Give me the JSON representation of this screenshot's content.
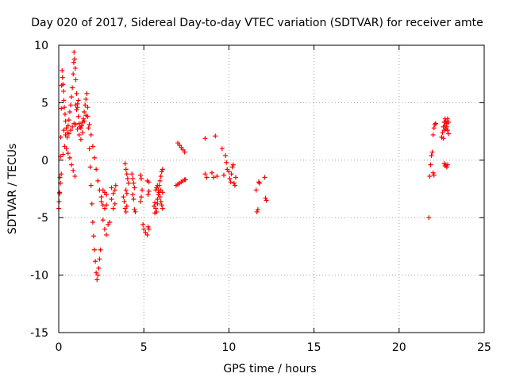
{
  "chart_data": {
    "type": "scatter",
    "title": "Day 020 of 2017, Sidereal Day-to-day VTEC variation (SDTVAR) for receiver amte",
    "xlabel": "GPS time / hours",
    "ylabel": "SDTVAR / TECUs",
    "xlim": [
      0,
      25
    ],
    "ylim": [
      -15,
      10
    ],
    "xticks": [
      0,
      5,
      10,
      15,
      20,
      25
    ],
    "xtick_labels": [
      "0",
      "5",
      "10",
      "15",
      "20",
      "25"
    ],
    "yticks": [
      -15,
      -10,
      -5,
      0,
      5,
      10
    ],
    "ytick_labels": [
      "-15",
      "-10",
      "-5",
      "0",
      "5",
      "10"
    ],
    "grid": true,
    "marker": "+",
    "color": "#ff0000",
    "series": [
      {
        "name": "SDTVAR",
        "points": [
          [
            0.0,
            -4.2
          ],
          [
            0.02,
            -3.6
          ],
          [
            0.05,
            -2.8
          ],
          [
            0.07,
            -1.5
          ],
          [
            0.1,
            0.3
          ],
          [
            0.12,
            2.0
          ],
          [
            0.15,
            4.5
          ],
          [
            0.17,
            6.5
          ],
          [
            0.2,
            7.8
          ],
          [
            0.22,
            7.2
          ],
          [
            0.25,
            6.6
          ],
          [
            0.28,
            6.0
          ],
          [
            0.3,
            5.2
          ],
          [
            0.33,
            4.6
          ],
          [
            0.37,
            4.0
          ],
          [
            0.4,
            3.4
          ],
          [
            0.45,
            2.8
          ],
          [
            0.5,
            2.4
          ],
          [
            0.55,
            3.0
          ],
          [
            0.6,
            3.5
          ],
          [
            0.65,
            4.2
          ],
          [
            0.7,
            4.8
          ],
          [
            0.75,
            5.5
          ],
          [
            0.8,
            6.3
          ],
          [
            0.85,
            7.5
          ],
          [
            0.88,
            8.5
          ],
          [
            0.9,
            9.4
          ],
          [
            0.93,
            8.8
          ],
          [
            0.97,
            8.0
          ],
          [
            1.0,
            7.0
          ],
          [
            1.05,
            5.8
          ],
          [
            1.1,
            4.6
          ],
          [
            1.15,
            3.8
          ],
          [
            1.2,
            3.2
          ],
          [
            1.25,
            2.9
          ],
          [
            1.3,
            2.8
          ],
          [
            1.35,
            3.0
          ],
          [
            1.4,
            3.3
          ],
          [
            1.45,
            3.6
          ],
          [
            1.5,
            4.2
          ],
          [
            1.55,
            4.8
          ],
          [
            1.6,
            5.3
          ],
          [
            1.65,
            5.8
          ],
          [
            1.7,
            4.6
          ],
          [
            1.75,
            2.8
          ],
          [
            1.8,
            1.0
          ],
          [
            1.85,
            -0.6
          ],
          [
            1.9,
            -2.2
          ],
          [
            1.95,
            -3.8
          ],
          [
            2.0,
            -5.4
          ],
          [
            2.05,
            -6.6
          ],
          [
            2.1,
            -7.8
          ],
          [
            2.15,
            -8.8
          ],
          [
            2.2,
            -9.8
          ],
          [
            2.25,
            -10.4
          ],
          [
            2.3,
            -10.0
          ],
          [
            2.35,
            -9.4
          ],
          [
            2.4,
            -8.6
          ],
          [
            2.45,
            -7.8
          ],
          [
            0.05,
            -2.9
          ],
          [
            0.1,
            -2.0
          ],
          [
            0.15,
            -1.2
          ],
          [
            0.25,
            0.5
          ],
          [
            0.35,
            1.2
          ],
          [
            0.45,
            1.0
          ],
          [
            0.55,
            0.6
          ],
          [
            0.65,
            0.2
          ],
          [
            0.75,
            -0.4
          ],
          [
            0.85,
            -0.9
          ],
          [
            0.95,
            -1.4
          ],
          [
            0.3,
            2.6
          ],
          [
            0.4,
            2.2
          ],
          [
            0.5,
            2.0
          ],
          [
            0.6,
            2.3
          ],
          [
            0.7,
            2.6
          ],
          [
            0.8,
            2.9
          ],
          [
            0.9,
            3.2
          ],
          [
            1.0,
            3.1
          ],
          [
            1.1,
            2.7
          ],
          [
            1.2,
            2.2
          ],
          [
            1.3,
            1.8
          ],
          [
            1.4,
            2.4
          ],
          [
            1.5,
            3.4
          ],
          [
            1.6,
            3.9
          ],
          [
            1.7,
            3.8
          ],
          [
            1.8,
            3.1
          ],
          [
            1.9,
            2.2
          ],
          [
            2.0,
            1.2
          ],
          [
            2.1,
            0.2
          ],
          [
            2.2,
            -0.8
          ],
          [
            2.3,
            -1.8
          ],
          [
            2.4,
            -2.6
          ],
          [
            2.5,
            -3.2
          ],
          [
            1.0,
            4.8
          ],
          [
            1.05,
            4.4
          ],
          [
            1.1,
            4.9
          ],
          [
            1.15,
            5.2
          ],
          [
            2.5,
            -3.6
          ],
          [
            2.6,
            -3.9
          ],
          [
            2.7,
            -4.2
          ],
          [
            2.8,
            -3.9
          ],
          [
            2.6,
            -5.2
          ],
          [
            2.7,
            -6.0
          ],
          [
            2.8,
            -6.5
          ],
          [
            2.9,
            -5.6
          ],
          [
            3.0,
            -5.4
          ],
          [
            2.6,
            -2.6
          ],
          [
            2.7,
            -2.8
          ],
          [
            2.8,
            -3.0
          ],
          [
            3.1,
            -2.4
          ],
          [
            3.2,
            -2.9
          ],
          [
            3.3,
            -2.6
          ],
          [
            3.35,
            -2.2
          ],
          [
            3.1,
            -3.4
          ],
          [
            3.2,
            -4.2
          ],
          [
            3.3,
            -3.8
          ],
          [
            3.8,
            -3.2
          ],
          [
            3.85,
            -3.6
          ],
          [
            3.9,
            -4.2
          ],
          [
            3.95,
            -4.5
          ],
          [
            4.0,
            -4.0
          ],
          [
            3.9,
            -0.3
          ],
          [
            3.95,
            -0.8
          ],
          [
            4.0,
            -1.2
          ],
          [
            4.05,
            -1.6
          ],
          [
            4.1,
            -2.0
          ],
          [
            3.95,
            -2.6
          ],
          [
            4.0,
            -2.9
          ],
          [
            4.3,
            -1.2
          ],
          [
            4.35,
            -1.6
          ],
          [
            4.4,
            -2.0
          ],
          [
            4.45,
            -2.4
          ],
          [
            4.35,
            -3.0
          ],
          [
            4.4,
            -3.4
          ],
          [
            4.45,
            -4.3
          ],
          [
            4.5,
            -4.5
          ],
          [
            4.8,
            -1.3
          ],
          [
            4.85,
            -1.6
          ],
          [
            4.8,
            -3.6
          ],
          [
            4.85,
            -3.2
          ],
          [
            4.9,
            -2.6
          ],
          [
            4.95,
            -5.6
          ],
          [
            5.0,
            -6.0
          ],
          [
            5.1,
            -6.3
          ],
          [
            5.2,
            -6.5
          ],
          [
            5.3,
            -6.0
          ],
          [
            5.25,
            -5.8
          ],
          [
            5.2,
            -1.8
          ],
          [
            5.3,
            -1.9
          ],
          [
            5.25,
            -3.0
          ],
          [
            5.3,
            -2.7
          ],
          [
            5.6,
            -4.0
          ],
          [
            5.65,
            -3.7
          ],
          [
            5.7,
            -4.2
          ],
          [
            5.75,
            -4.5
          ],
          [
            5.8,
            -3.8
          ],
          [
            5.85,
            -2.6
          ],
          [
            5.9,
            -2.2
          ],
          [
            5.95,
            -1.8
          ],
          [
            6.0,
            -1.4
          ],
          [
            6.05,
            -1.0
          ],
          [
            6.1,
            -0.8
          ],
          [
            5.8,
            -3.4
          ],
          [
            5.85,
            -3.0
          ],
          [
            5.9,
            -2.8
          ],
          [
            5.95,
            -3.2
          ],
          [
            6.0,
            -3.6
          ],
          [
            6.05,
            -3.9
          ],
          [
            6.1,
            -4.2
          ],
          [
            5.7,
            -2.6
          ],
          [
            5.75,
            -2.4
          ],
          [
            5.8,
            -2.2
          ],
          [
            6.0,
            -2.6
          ],
          [
            6.1,
            -2.8
          ],
          [
            5.65,
            -4.6
          ],
          [
            6.9,
            -2.2
          ],
          [
            7.0,
            -2.1
          ],
          [
            7.1,
            -2.0
          ],
          [
            7.2,
            -1.9
          ],
          [
            7.3,
            -1.8
          ],
          [
            7.4,
            -1.7
          ],
          [
            7.45,
            -1.7
          ],
          [
            7.0,
            1.5
          ],
          [
            7.1,
            1.3
          ],
          [
            7.2,
            1.1
          ],
          [
            7.3,
            0.9
          ],
          [
            7.4,
            0.7
          ],
          [
            8.6,
            1.9
          ],
          [
            8.6,
            -1.2
          ],
          [
            8.7,
            -1.5
          ],
          [
            9.0,
            -1.1
          ],
          [
            9.1,
            -1.5
          ],
          [
            9.2,
            2.1
          ],
          [
            9.3,
            -1.4
          ],
          [
            9.6,
            1.0
          ],
          [
            9.7,
            -1.3
          ],
          [
            9.8,
            0.4
          ],
          [
            9.85,
            -0.2
          ],
          [
            9.9,
            -0.8
          ],
          [
            10.0,
            -1.0
          ],
          [
            10.05,
            -1.6
          ],
          [
            10.1,
            -1.9
          ],
          [
            10.15,
            -1.2
          ],
          [
            10.2,
            -0.6
          ],
          [
            10.25,
            -0.4
          ],
          [
            10.3,
            -2.0
          ],
          [
            10.35,
            -2.2
          ],
          [
            10.4,
            -1.5
          ],
          [
            11.6,
            -2.6
          ],
          [
            11.65,
            -4.5
          ],
          [
            11.7,
            -4.3
          ],
          [
            11.75,
            -1.9
          ],
          [
            11.8,
            -2.0
          ],
          [
            12.1,
            -1.5
          ],
          [
            12.15,
            -3.3
          ],
          [
            12.2,
            -3.5
          ],
          [
            21.75,
            -5.0
          ],
          [
            21.8,
            -1.4
          ],
          [
            21.85,
            -0.4
          ],
          [
            21.9,
            0.4
          ],
          [
            21.95,
            0.7
          ],
          [
            22.0,
            -1.1
          ],
          [
            22.05,
            -1.3
          ],
          [
            22.0,
            2.2
          ],
          [
            22.05,
            2.8
          ],
          [
            22.1,
            3.1
          ],
          [
            22.15,
            3.2
          ],
          [
            22.5,
            2.0
          ],
          [
            22.55,
            2.4
          ],
          [
            22.6,
            2.9
          ],
          [
            22.65,
            3.3
          ],
          [
            22.7,
            3.6
          ],
          [
            22.75,
            3.4
          ],
          [
            22.8,
            2.9
          ],
          [
            22.85,
            2.6
          ],
          [
            22.9,
            2.3
          ],
          [
            22.6,
            1.9
          ],
          [
            22.65,
            2.6
          ],
          [
            22.7,
            3.0
          ],
          [
            22.75,
            2.7
          ],
          [
            22.8,
            3.2
          ],
          [
            22.85,
            3.6
          ],
          [
            22.9,
            3.3
          ],
          [
            22.65,
            -0.3
          ],
          [
            22.7,
            -0.5
          ],
          [
            22.75,
            -0.4
          ],
          [
            22.8,
            -0.6
          ],
          [
            22.85,
            -0.4
          ]
        ]
      }
    ]
  }
}
